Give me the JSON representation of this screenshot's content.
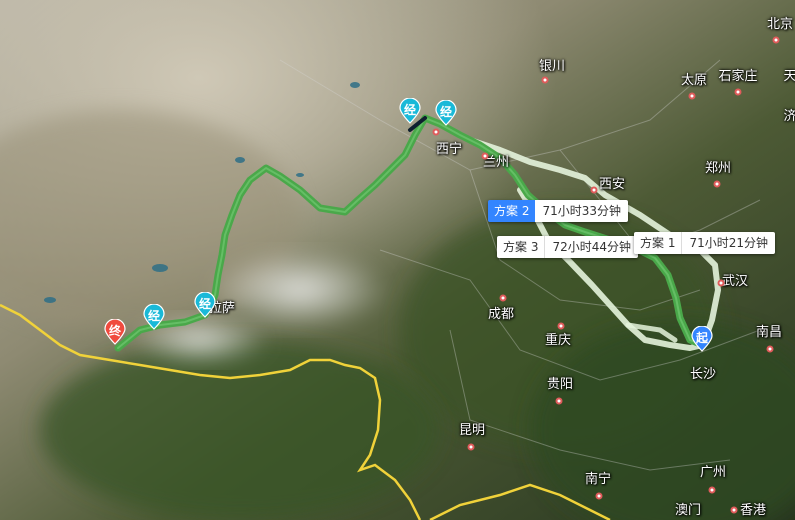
{
  "map": {
    "colors": {
      "route_main": "#4aa84a",
      "route_alt": "#e4f3dc",
      "border": "#f0d23a",
      "marker_start": "#3385ff",
      "marker_via": "#19b9d8",
      "marker_end": "#f04b3f"
    },
    "cities": [
      {
        "name": "北京",
        "dot": true
      },
      {
        "name": "天",
        "dot": false
      },
      {
        "name": "银川",
        "dot": true
      },
      {
        "name": "太原",
        "dot": true
      },
      {
        "name": "石家庄",
        "dot": true
      },
      {
        "name": "济",
        "dot": false
      },
      {
        "name": "西宁",
        "dot": true
      },
      {
        "name": "兰州",
        "dot": true
      },
      {
        "name": "西安",
        "dot": true
      },
      {
        "name": "郑州",
        "dot": true
      },
      {
        "name": "武汉",
        "dot": true
      },
      {
        "name": "成都",
        "dot": true
      },
      {
        "name": "重庆",
        "dot": true
      },
      {
        "name": "南昌",
        "dot": true
      },
      {
        "name": "长沙",
        "dot": false
      },
      {
        "name": "贵阳",
        "dot": true
      },
      {
        "name": "昆明",
        "dot": true
      },
      {
        "name": "广州",
        "dot": true
      },
      {
        "name": "南宁",
        "dot": true
      },
      {
        "name": "澳门",
        "dot": false
      },
      {
        "name": "香港",
        "dot": true
      },
      {
        "name": "拉萨",
        "dot": false
      }
    ],
    "markers": [
      {
        "type": "start",
        "label": "起",
        "icon": "start-pin-icon"
      },
      {
        "type": "via",
        "label": "经",
        "icon": "via-pin-icon"
      },
      {
        "type": "via",
        "label": "经",
        "icon": "via-pin-icon"
      },
      {
        "type": "via",
        "label": "经",
        "icon": "via-pin-icon"
      },
      {
        "type": "via",
        "label": "经",
        "icon": "via-pin-icon"
      },
      {
        "type": "end",
        "label": "终",
        "icon": "end-pin-icon"
      }
    ],
    "plans": [
      {
        "tag": "方案 2",
        "time": "71小时33分钟",
        "active": true
      },
      {
        "tag": "方案 3",
        "time": "72小时44分钟",
        "active": false
      },
      {
        "tag": "方案 1",
        "time": "71小时21分钟",
        "active": false
      }
    ]
  }
}
